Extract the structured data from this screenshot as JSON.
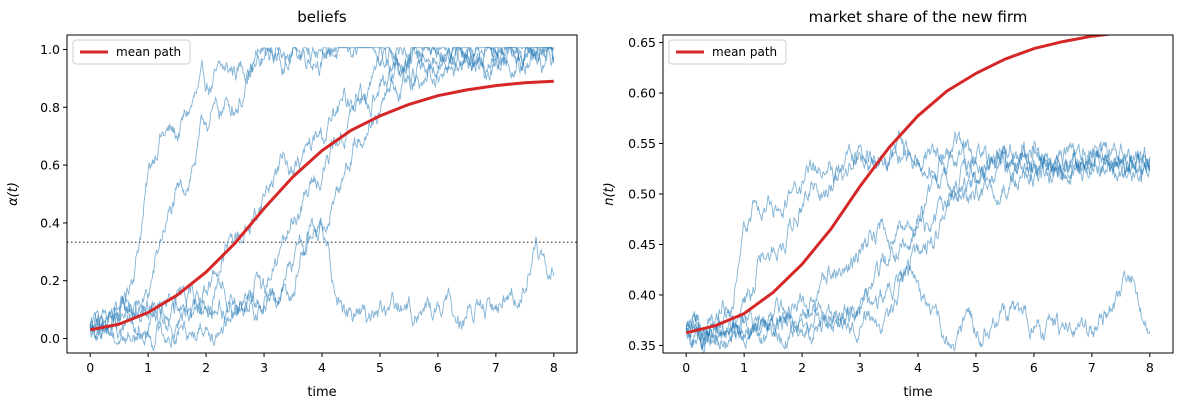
{
  "chart_data": [
    {
      "type": "line",
      "title": "beliefs",
      "xlabel": "time",
      "ylabel": "α(t)",
      "xlim": [
        -0.4,
        8.4
      ],
      "ylim": [
        -0.05,
        1.05
      ],
      "xticks": [
        0,
        1,
        2,
        3,
        4,
        5,
        6,
        7,
        8
      ],
      "yticks": [
        0.0,
        0.2,
        0.4,
        0.6,
        0.8,
        1.0
      ],
      "ytick_labels": [
        "0.0",
        "0.2",
        "0.4",
        "0.6",
        "0.8",
        "1.0"
      ],
      "grid": false,
      "legend": {
        "position": "top-left",
        "entries": [
          "mean path"
        ]
      },
      "reference_line": {
        "y": 0.333,
        "style": "dotted",
        "color": "#666666"
      },
      "series": [
        {
          "name": "mean path",
          "color": "#d62728",
          "x": [
            0,
            0.5,
            1,
            1.5,
            2,
            2.5,
            3,
            3.5,
            4,
            4.5,
            5,
            5.5,
            6,
            6.5,
            7,
            7.5,
            8
          ],
          "y": [
            0.03,
            0.05,
            0.09,
            0.15,
            0.23,
            0.33,
            0.45,
            0.56,
            0.65,
            0.72,
            0.77,
            0.81,
            0.84,
            0.86,
            0.875,
            0.885,
            0.89
          ]
        },
        {
          "color": "#1f77b4",
          "x": [
            0,
            0.3,
            0.6,
            0.8,
            1.0,
            1.2,
            1.5,
            1.8,
            2.0,
            2.3,
            2.6,
            2.8,
            3.0,
            3.5,
            4,
            5,
            6,
            6.5,
            6.8,
            7,
            8
          ],
          "y": [
            0.03,
            0.05,
            0.12,
            0.3,
            0.55,
            0.72,
            0.7,
            0.82,
            0.86,
            0.9,
            0.94,
            0.97,
            0.99,
            0.99,
            1.0,
            1.0,
            0.99,
            0.96,
            0.9,
            0.98,
            0.99
          ]
        },
        {
          "color": "#1f77b4",
          "x": [
            0,
            0.5,
            1.0,
            1.3,
            1.6,
            2.0,
            2.2,
            2.5,
            2.8,
            3.0,
            3.2,
            3.5,
            4.0,
            5,
            6,
            7,
            8
          ],
          "y": [
            0.03,
            0.06,
            0.14,
            0.4,
            0.5,
            0.75,
            0.78,
            0.82,
            0.9,
            0.95,
            0.97,
            0.99,
            1.0,
            1.0,
            1.0,
            1.0,
            1.0
          ]
        },
        {
          "color": "#1f77b4",
          "x": [
            0,
            0.5,
            1.0,
            1.5,
            1.8,
            2.1,
            2.5,
            2.8,
            3.0,
            3.3,
            3.6,
            4.0,
            4.3,
            4.8,
            5.5,
            6,
            7,
            8
          ],
          "y": [
            0.03,
            0.05,
            0.08,
            0.1,
            0.15,
            0.22,
            0.35,
            0.4,
            0.5,
            0.62,
            0.6,
            0.7,
            0.78,
            0.88,
            0.96,
            0.98,
            1.0,
            1.0
          ]
        },
        {
          "color": "#1f77b4",
          "x": [
            0,
            0.5,
            1.0,
            1.5,
            2.0,
            2.5,
            3.0,
            3.3,
            3.6,
            3.9,
            4.2,
            4.6,
            5.0,
            5.5,
            6,
            7,
            8
          ],
          "y": [
            0.03,
            0.05,
            0.08,
            0.1,
            0.12,
            0.13,
            0.18,
            0.3,
            0.45,
            0.55,
            0.65,
            0.8,
            0.88,
            0.94,
            0.97,
            0.99,
            0.98
          ]
        },
        {
          "color": "#1f77b4",
          "x": [
            0,
            0.5,
            1.0,
            1.5,
            2.0,
            2.5,
            3.0,
            3.3,
            3.6,
            4.0,
            4.3,
            4.6,
            5.0,
            5.5,
            6,
            7,
            8
          ],
          "y": [
            0.03,
            0.04,
            0.06,
            0.09,
            0.1,
            0.12,
            0.14,
            0.18,
            0.3,
            0.4,
            0.55,
            0.7,
            0.82,
            0.9,
            0.95,
            0.99,
            1.0
          ]
        },
        {
          "color": "#1f77b4",
          "x": [
            0,
            0.5,
            1.0,
            1.5,
            2.0,
            2.5,
            3.0,
            3.5,
            3.8,
            4.0,
            4.2,
            4.5,
            5.0,
            5.5,
            6.0,
            6.5,
            7.0,
            7.5,
            7.7,
            7.9,
            8
          ],
          "y": [
            0.03,
            0.02,
            0.02,
            0.04,
            0.06,
            0.1,
            0.12,
            0.18,
            0.42,
            0.35,
            0.2,
            0.12,
            0.08,
            0.1,
            0.12,
            0.08,
            0.1,
            0.2,
            0.35,
            0.15,
            0.2
          ]
        }
      ]
    },
    {
      "type": "line",
      "title": "market share of the new firm",
      "xlabel": "time",
      "ylabel": "n(t)",
      "xlim": [
        -0.4,
        8.4
      ],
      "ylim": [
        0.3425,
        0.6575
      ],
      "xticks": [
        0,
        1,
        2,
        3,
        4,
        5,
        6,
        7,
        8
      ],
      "yticks": [
        0.35,
        0.4,
        0.45,
        0.5,
        0.55,
        0.6,
        0.65
      ],
      "ytick_labels": [
        "0.35",
        "0.40",
        "0.45",
        "0.50",
        "0.55",
        "0.60",
        "0.65"
      ],
      "grid": false,
      "legend": {
        "position": "top-left",
        "entries": [
          "mean path"
        ]
      },
      "series": [
        {
          "name": "mean path",
          "color": "#d62728",
          "x": [
            0,
            0.5,
            1,
            1.5,
            2,
            2.5,
            3,
            3.5,
            4,
            4.5,
            5,
            5.5,
            6,
            6.5,
            7,
            7.5,
            8
          ],
          "y": [
            0.3625,
            0.3695,
            0.3815,
            0.4025,
            0.4305,
            0.4655,
            0.5075,
            0.546,
            0.5775,
            0.602,
            0.6195,
            0.6335,
            0.644,
            0.651,
            0.6563,
            0.6598,
            0.6615
          ]
        },
        {
          "color": "#1f77b4",
          "x": [
            0,
            0.3,
            0.6,
            0.8,
            1.0,
            1.2,
            1.5,
            1.8,
            2.0,
            2.3,
            2.6,
            2.8,
            3.0,
            3.5,
            4,
            5,
            6,
            6.5,
            6.8,
            7,
            8
          ],
          "y": [
            0.3625,
            0.3655,
            0.38,
            0.4135,
            0.458,
            0.4895,
            0.4825,
            0.5045,
            0.5115,
            0.5185,
            0.5255,
            0.531,
            0.5345,
            0.5345,
            0.536,
            0.536,
            0.5345,
            0.529,
            0.5185,
            0.5325,
            0.5345
          ]
        },
        {
          "color": "#1f77b4",
          "x": [
            0,
            0.5,
            1.0,
            1.3,
            1.6,
            2.0,
            2.2,
            2.5,
            2.8,
            3.0,
            3.2,
            3.5,
            4.0,
            5,
            6,
            7,
            8
          ],
          "y": [
            0.3625,
            0.367,
            0.383,
            0.4305,
            0.448,
            0.4925,
            0.4975,
            0.5045,
            0.5185,
            0.527,
            0.531,
            0.5345,
            0.536,
            0.536,
            0.536,
            0.536,
            0.536
          ]
        },
        {
          "color": "#1f77b4",
          "x": [
            0,
            0.5,
            1.0,
            1.5,
            1.8,
            2.1,
            2.5,
            2.8,
            3.0,
            3.3,
            3.6,
            4.0,
            4.3,
            4.8,
            5.5,
            6,
            7,
            8
          ],
          "y": [
            0.3625,
            0.3655,
            0.3705,
            0.374,
            0.3835,
            0.3955,
            0.4185,
            0.427,
            0.445,
            0.4665,
            0.4625,
            0.4805,
            0.4945,
            0.5115,
            0.5255,
            0.529,
            0.5345,
            0.5345
          ]
        },
        {
          "color": "#1f77b4",
          "x": [
            0,
            0.5,
            1.0,
            1.5,
            2.0,
            2.5,
            3.0,
            3.3,
            3.6,
            3.9,
            4.2,
            4.6,
            5.0,
            5.5,
            6,
            7,
            8
          ],
          "y": [
            0.3625,
            0.3655,
            0.3705,
            0.374,
            0.3775,
            0.3795,
            0.388,
            0.4095,
            0.4345,
            0.4525,
            0.4705,
            0.497,
            0.5115,
            0.5215,
            0.527,
            0.531,
            0.5295
          ]
        },
        {
          "color": "#1f77b4",
          "x": [
            0,
            0.5,
            1.0,
            1.5,
            2.0,
            2.5,
            3.0,
            3.3,
            3.6,
            4.0,
            4.3,
            4.6,
            5.0,
            5.5,
            6,
            7,
            8
          ],
          "y": [
            0.3625,
            0.3645,
            0.368,
            0.373,
            0.3745,
            0.3775,
            0.381,
            0.388,
            0.4095,
            0.4275,
            0.4525,
            0.4795,
            0.501,
            0.515,
            0.524,
            0.531,
            0.5345
          ]
        },
        {
          "color": "#1f77b4",
          "x": [
            0,
            0.5,
            1.0,
            1.5,
            2.0,
            2.5,
            3.0,
            3.5,
            3.8,
            4.0,
            4.2,
            4.5,
            5.0,
            5.5,
            6.0,
            6.5,
            7.0,
            7.5,
            7.7,
            7.9,
            8
          ],
          "y": [
            0.3625,
            0.3595,
            0.3595,
            0.363,
            0.3655,
            0.3705,
            0.374,
            0.3835,
            0.425,
            0.413,
            0.3865,
            0.3725,
            0.3655,
            0.3705,
            0.374,
            0.3655,
            0.3705,
            0.388,
            0.4145,
            0.3795,
            0.388
          ]
        }
      ]
    }
  ]
}
